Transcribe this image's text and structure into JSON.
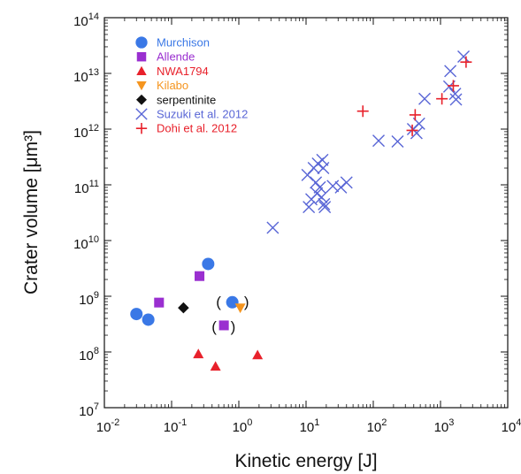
{
  "chart_data": {
    "type": "scatter",
    "xlabel": "Kinetic energy [J]",
    "ylabel": "Crater volume [μm³]",
    "x_scale": "log",
    "y_scale": "log",
    "xlim": [
      0.01,
      10000
    ],
    "ylim": [
      10000000,
      100000000000000
    ],
    "x_ticks": [
      {
        "value": 0.01,
        "base": "10",
        "exp": "-2"
      },
      {
        "value": 0.1,
        "base": "10",
        "exp": "-1"
      },
      {
        "value": 1,
        "base": "10",
        "exp": "0"
      },
      {
        "value": 10,
        "base": "10",
        "exp": "1"
      },
      {
        "value": 100,
        "base": "10",
        "exp": "2"
      },
      {
        "value": 1000,
        "base": "10",
        "exp": "3"
      },
      {
        "value": 10000,
        "base": "10",
        "exp": "4"
      }
    ],
    "y_ticks": [
      {
        "value": 10000000,
        "base": "10",
        "exp": "7"
      },
      {
        "value": 100000000,
        "base": "10",
        "exp": "8"
      },
      {
        "value": 1000000000,
        "base": "10",
        "exp": "9"
      },
      {
        "value": 10000000000,
        "base": "10",
        "exp": "10"
      },
      {
        "value": 100000000000,
        "base": "10",
        "exp": "11"
      },
      {
        "value": 1000000000000,
        "base": "10",
        "exp": "12"
      },
      {
        "value": 10000000000000,
        "base": "10",
        "exp": "13"
      },
      {
        "value": 100000000000000,
        "base": "10",
        "exp": "14"
      }
    ],
    "grid": false,
    "legend_position": "top-left",
    "annotations": [
      {
        "text": "(",
        "x": 0.5,
        "y": 800000000
      },
      {
        "text": ")",
        "x": 1.3,
        "y": 800000000
      },
      {
        "text": "(",
        "x": 0.43,
        "y": 290000000
      },
      {
        "text": ")",
        "x": 0.82,
        "y": 290000000
      }
    ],
    "series": [
      {
        "name": "Murchison",
        "marker": "circle",
        "color": "#3a78e6",
        "points": [
          [
            0.03,
            480000000
          ],
          [
            0.045,
            380000000
          ],
          [
            0.35,
            3800000000
          ],
          [
            0.8,
            780000000
          ]
        ]
      },
      {
        "name": "Allende",
        "marker": "square",
        "color": "#9a2fd0",
        "points": [
          [
            0.065,
            770000000
          ],
          [
            0.26,
            2300000000
          ],
          [
            0.6,
            300000000
          ]
        ]
      },
      {
        "name": "NWA1794",
        "marker": "triangle-up",
        "color": "#e8212b",
        "points": [
          [
            0.25,
            92000000
          ],
          [
            0.45,
            55000000
          ],
          [
            1.9,
            88000000
          ]
        ]
      },
      {
        "name": "Kilabo",
        "marker": "triangle-down",
        "color": "#f5951f",
        "points": [
          [
            1.05,
            620000000
          ]
        ]
      },
      {
        "name": "serpentinite",
        "marker": "diamond",
        "color": "#111111",
        "points": [
          [
            0.15,
            620000000
          ]
        ]
      },
      {
        "name": "Suzuki et al. 2012",
        "marker": "x",
        "color": "#5966d6",
        "points": [
          [
            3.2,
            17000000000
          ],
          [
            10.5,
            150000000000
          ],
          [
            11,
            40000000000
          ],
          [
            12,
            55000000000
          ],
          [
            13,
            200000000000
          ],
          [
            14,
            110000000000
          ],
          [
            14.5,
            70000000000
          ],
          [
            15,
            240000000000
          ],
          [
            16,
            90000000000
          ],
          [
            17,
            60000000000
          ],
          [
            17.5,
            280000000000
          ],
          [
            18,
            200000000000
          ],
          [
            18.5,
            45000000000
          ],
          [
            19,
            40000000000
          ],
          [
            25,
            95000000000
          ],
          [
            33,
            90000000000
          ],
          [
            40,
            110000000000
          ],
          [
            120,
            620000000000
          ],
          [
            230,
            600000000000
          ],
          [
            390,
            1000000000000
          ],
          [
            440,
            850000000000
          ],
          [
            480,
            1250000000000
          ],
          [
            580,
            3500000000000
          ],
          [
            1350,
            5800000000000
          ],
          [
            1400,
            11000000000000
          ],
          [
            1650,
            4300000000000
          ],
          [
            1700,
            3400000000000
          ],
          [
            2200,
            20000000000000
          ]
        ]
      },
      {
        "name": "Dohi et al. 2012",
        "marker": "plus",
        "color": "#e8212b",
        "points": [
          [
            70,
            2100000000000
          ],
          [
            380,
            950000000000
          ],
          [
            420,
            1800000000000
          ],
          [
            1050,
            3500000000000
          ],
          [
            1550,
            6000000000000
          ],
          [
            2400,
            16000000000000
          ]
        ]
      }
    ]
  }
}
